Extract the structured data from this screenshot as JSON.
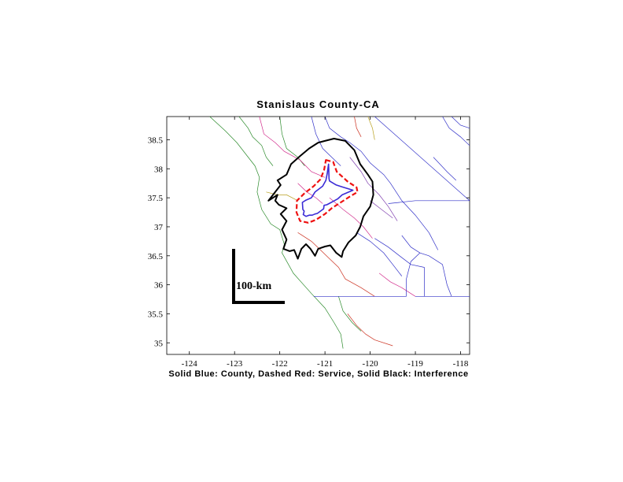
{
  "title": "Stanislaus County-CA",
  "caption": "Solid Blue: County, Dashed Red: Service, Solid Black: Interference",
  "scale_bar_label": "100-km",
  "colors": {
    "county": "#3b2bd6",
    "service": "#ee1111",
    "interference": "#000000",
    "county_lines": [
      "#2a8a2a",
      "#d22c8c",
      "#3030c8",
      "#b8a020",
      "#cc3322",
      "#8040b0"
    ]
  },
  "chart_data": {
    "type": "map",
    "title": "Stanislaus County-CA",
    "xlim": [
      -124.5,
      -117.8
    ],
    "ylim": [
      34.8,
      38.9
    ],
    "x_ticks": [
      {
        "value": -124,
        "label": "-124"
      },
      {
        "value": -123,
        "label": "-123"
      },
      {
        "value": -122,
        "label": "-122"
      },
      {
        "value": -121,
        "label": "-121"
      },
      {
        "value": -120,
        "label": "-120"
      },
      {
        "value": -119,
        "label": "-119"
      },
      {
        "value": -118,
        "label": "-118"
      }
    ],
    "y_ticks": [
      {
        "value": 35,
        "label": "35"
      },
      {
        "value": 35.5,
        "label": "35.5"
      },
      {
        "value": 36,
        "label": "36"
      },
      {
        "value": 36.5,
        "label": "36.5"
      },
      {
        "value": 37,
        "label": "37"
      },
      {
        "value": 37.5,
        "label": "37.5"
      },
      {
        "value": 38,
        "label": "38"
      },
      {
        "value": 38.5,
        "label": "38.5"
      }
    ],
    "legend": "Solid Blue: County, Dashed Red: Service, Solid Black: Interference",
    "county_boundary": [
      [
        -120.92,
        38.08
      ],
      [
        -120.91,
        37.83
      ],
      [
        -120.9,
        37.79
      ],
      [
        -120.75,
        37.72
      ],
      [
        -120.63,
        37.69
      ],
      [
        -120.38,
        37.63
      ],
      [
        -120.62,
        37.55
      ],
      [
        -120.72,
        37.48
      ],
      [
        -120.91,
        37.4
      ],
      [
        -120.96,
        37.38
      ],
      [
        -121.02,
        37.37
      ],
      [
        -121.03,
        37.31
      ],
      [
        -121.17,
        37.23
      ],
      [
        -121.22,
        37.22
      ],
      [
        -121.28,
        37.2
      ],
      [
        -121.35,
        37.2
      ],
      [
        -121.42,
        37.18
      ],
      [
        -121.48,
        37.21
      ],
      [
        -121.46,
        37.27
      ],
      [
        -121.49,
        37.3
      ],
      [
        -121.5,
        37.42
      ],
      [
        -121.42,
        37.46
      ],
      [
        -121.3,
        37.5
      ],
      [
        -121.22,
        37.6
      ],
      [
        -121.05,
        37.7
      ],
      [
        -120.98,
        37.8
      ],
      [
        -120.95,
        37.92
      ],
      [
        -120.92,
        38.08
      ]
    ],
    "service_contour": [
      [
        -120.98,
        38.15
      ],
      [
        -120.82,
        38.12
      ],
      [
        -120.74,
        37.95
      ],
      [
        -120.5,
        37.78
      ],
      [
        -120.3,
        37.68
      ],
      [
        -120.28,
        37.6
      ],
      [
        -120.45,
        37.52
      ],
      [
        -120.65,
        37.42
      ],
      [
        -120.85,
        37.32
      ],
      [
        -121.0,
        37.22
      ],
      [
        -121.2,
        37.12
      ],
      [
        -121.37,
        37.07
      ],
      [
        -121.55,
        37.1
      ],
      [
        -121.63,
        37.25
      ],
      [
        -121.62,
        37.45
      ],
      [
        -121.45,
        37.58
      ],
      [
        -121.25,
        37.7
      ],
      [
        -121.1,
        37.82
      ],
      [
        -121.02,
        37.98
      ],
      [
        -120.98,
        38.15
      ]
    ],
    "interference_contour": [
      [
        -121.0,
        38.48
      ],
      [
        -120.8,
        38.52
      ],
      [
        -120.55,
        38.48
      ],
      [
        -120.35,
        38.32
      ],
      [
        -120.22,
        38.08
      ],
      [
        -120.05,
        37.9
      ],
      [
        -119.95,
        37.78
      ],
      [
        -119.93,
        37.55
      ],
      [
        -120.0,
        37.35
      ],
      [
        -120.15,
        37.18
      ],
      [
        -120.22,
        37.0
      ],
      [
        -120.32,
        36.85
      ],
      [
        -120.48,
        36.73
      ],
      [
        -120.6,
        36.58
      ],
      [
        -120.63,
        36.48
      ],
      [
        -120.75,
        36.55
      ],
      [
        -120.88,
        36.68
      ],
      [
        -121.0,
        36.66
      ],
      [
        -121.15,
        36.62
      ],
      [
        -121.22,
        36.5
      ],
      [
        -121.32,
        36.62
      ],
      [
        -121.42,
        36.7
      ],
      [
        -121.52,
        36.62
      ],
      [
        -121.6,
        36.45
      ],
      [
        -121.68,
        36.6
      ],
      [
        -121.78,
        36.58
      ],
      [
        -121.92,
        36.62
      ],
      [
        -121.85,
        36.78
      ],
      [
        -121.95,
        36.95
      ],
      [
        -121.85,
        37.1
      ],
      [
        -121.98,
        37.22
      ],
      [
        -121.85,
        37.32
      ],
      [
        -122.02,
        37.38
      ],
      [
        -122.1,
        37.45
      ],
      [
        -122.05,
        37.55
      ],
      [
        -122.25,
        37.45
      ],
      [
        -121.98,
        37.72
      ],
      [
        -122.05,
        37.8
      ],
      [
        -121.85,
        37.9
      ],
      [
        -121.75,
        38.08
      ],
      [
        -121.55,
        38.22
      ],
      [
        -121.35,
        38.35
      ],
      [
        -121.15,
        38.45
      ],
      [
        -121.0,
        38.48
      ]
    ],
    "county_lines": [
      {
        "color_index": 0,
        "points": [
          [
            -123.55,
            38.9
          ],
          [
            -123.2,
            38.65
          ],
          [
            -122.95,
            38.45
          ],
          [
            -122.75,
            38.25
          ],
          [
            -122.55,
            38.05
          ],
          [
            -122.45,
            37.85
          ],
          [
            -122.5,
            37.6
          ],
          [
            -122.4,
            37.3
          ],
          [
            -122.2,
            37.05
          ],
          [
            -122.0,
            36.95
          ],
          [
            -121.9,
            36.7
          ],
          [
            -121.95,
            36.55
          ],
          [
            -121.7,
            36.2
          ],
          [
            -121.3,
            35.85
          ],
          [
            -121.0,
            35.6
          ],
          [
            -120.8,
            35.35
          ],
          [
            -120.65,
            35.15
          ],
          [
            -120.6,
            34.9
          ]
        ]
      },
      {
        "color_index": 0,
        "points": [
          [
            -122.9,
            38.9
          ],
          [
            -122.7,
            38.7
          ],
          [
            -122.6,
            38.55
          ],
          [
            -122.4,
            38.4
          ],
          [
            -122.3,
            38.2
          ],
          [
            -122.15,
            38.05
          ]
        ]
      },
      {
        "color_index": 0,
        "points": [
          [
            -122.0,
            38.9
          ],
          [
            -121.95,
            38.6
          ],
          [
            -121.85,
            38.35
          ],
          [
            -121.6,
            38.2
          ],
          [
            -121.45,
            38.05
          ]
        ]
      },
      {
        "color_index": 1,
        "points": [
          [
            -122.45,
            38.9
          ],
          [
            -122.35,
            38.6
          ],
          [
            -122.1,
            38.45
          ],
          [
            -121.9,
            38.3
          ],
          [
            -121.55,
            38.15
          ],
          [
            -121.3,
            37.95
          ],
          [
            -121.0,
            37.85
          ]
        ]
      },
      {
        "color_index": 1,
        "points": [
          [
            -121.6,
            37.75
          ],
          [
            -121.4,
            37.6
          ],
          [
            -121.2,
            37.5
          ],
          [
            -121.05,
            37.4
          ]
        ]
      },
      {
        "color_index": 1,
        "points": [
          [
            -120.9,
            37.5
          ],
          [
            -120.6,
            37.3
          ],
          [
            -120.35,
            37.15
          ],
          [
            -120.15,
            37.0
          ],
          [
            -119.95,
            36.8
          ]
        ]
      },
      {
        "color_index": 2,
        "points": [
          [
            -121.0,
            38.9
          ],
          [
            -120.9,
            38.7
          ],
          [
            -120.65,
            38.55
          ],
          [
            -120.45,
            38.45
          ],
          [
            -120.2,
            38.3
          ],
          [
            -120.0,
            38.1
          ],
          [
            -119.7,
            37.9
          ],
          [
            -119.55,
            37.75
          ],
          [
            -119.3,
            37.45
          ],
          [
            -119.0,
            37.2
          ],
          [
            -118.7,
            36.9
          ]
        ]
      },
      {
        "color_index": 2,
        "points": [
          [
            -121.3,
            38.9
          ],
          [
            -121.2,
            38.6
          ],
          [
            -121.05,
            38.35
          ],
          [
            -120.85,
            38.2
          ],
          [
            -120.65,
            38.05
          ]
        ]
      },
      {
        "color_index": 3,
        "points": [
          [
            -120.05,
            38.9
          ],
          [
            -119.95,
            38.7
          ],
          [
            -119.9,
            38.5
          ]
        ]
      },
      {
        "color_index": 3,
        "points": [
          [
            -122.3,
            37.6
          ],
          [
            -122.05,
            37.55
          ],
          [
            -121.85,
            37.55
          ],
          [
            -121.6,
            37.45
          ]
        ]
      },
      {
        "color_index": 4,
        "points": [
          [
            -120.35,
            38.9
          ],
          [
            -120.3,
            38.7
          ],
          [
            -120.2,
            38.55
          ]
        ]
      },
      {
        "color_index": 4,
        "points": [
          [
            -121.6,
            36.9
          ],
          [
            -121.3,
            36.75
          ],
          [
            -121.1,
            36.6
          ],
          [
            -120.9,
            36.45
          ],
          [
            -120.7,
            36.3
          ],
          [
            -120.55,
            36.1
          ],
          [
            -120.2,
            35.95
          ],
          [
            -119.9,
            35.8
          ]
        ]
      },
      {
        "color_index": 4,
        "points": [
          [
            -120.5,
            35.5
          ],
          [
            -120.3,
            35.3
          ],
          [
            -120.1,
            35.15
          ],
          [
            -119.9,
            35.05
          ],
          [
            -119.5,
            34.95
          ]
        ]
      },
      {
        "color_index": 0,
        "points": [
          [
            -120.7,
            35.8
          ],
          [
            -120.6,
            35.55
          ],
          [
            -120.4,
            35.35
          ],
          [
            -120.2,
            35.2
          ]
        ]
      },
      {
        "color_index": 5,
        "points": [
          [
            -120.45,
            38.2
          ],
          [
            -120.2,
            37.95
          ],
          [
            -120.05,
            37.75
          ],
          [
            -119.8,
            37.55
          ],
          [
            -119.6,
            37.35
          ],
          [
            -119.4,
            37.1
          ]
        ]
      },
      {
        "color_index": 5,
        "points": [
          [
            -120.0,
            37.45
          ],
          [
            -119.75,
            37.3
          ],
          [
            -119.5,
            37.15
          ]
        ]
      },
      {
        "color_index": 2,
        "points": [
          [
            -119.9,
            36.8
          ],
          [
            -119.6,
            36.65
          ],
          [
            -119.35,
            36.5
          ],
          [
            -119.1,
            36.35
          ],
          [
            -118.8,
            36.3
          ]
        ]
      },
      {
        "color_index": 2,
        "points": [
          [
            -120.3,
            36.9
          ],
          [
            -120.0,
            36.75
          ],
          [
            -119.7,
            36.55
          ],
          [
            -119.5,
            36.35
          ],
          [
            -119.3,
            36.15
          ]
        ]
      },
      {
        "color_index": 1,
        "points": [
          [
            -119.8,
            36.2
          ],
          [
            -119.55,
            36.05
          ],
          [
            -119.3,
            35.95
          ],
          [
            -119.0,
            35.8
          ]
        ]
      },
      {
        "color_index": 2,
        "points": [
          [
            -118.4,
            38.9
          ],
          [
            -118.25,
            38.7
          ],
          [
            -118.0,
            38.55
          ],
          [
            -117.8,
            38.4
          ]
        ]
      },
      {
        "color_index": 2,
        "points": [
          [
            -119.9,
            38.9
          ],
          [
            -117.8,
            37.45
          ]
        ]
      },
      {
        "color_index": 2,
        "points": [
          [
            -119.6,
            37.4
          ],
          [
            -119.0,
            37.45
          ],
          [
            -118.4,
            37.45
          ],
          [
            -117.8,
            37.45
          ]
        ]
      },
      {
        "color_index": 2,
        "points": [
          [
            -119.3,
            36.85
          ],
          [
            -119.1,
            36.65
          ],
          [
            -118.9,
            36.55
          ],
          [
            -118.7,
            36.5
          ],
          [
            -118.4,
            36.35
          ],
          [
            -118.3,
            36.0
          ],
          [
            -118.2,
            35.8
          ]
        ]
      },
      {
        "color_index": 2,
        "points": [
          [
            -118.7,
            36.9
          ],
          [
            -118.5,
            36.6
          ]
        ]
      },
      {
        "color_index": 2,
        "points": [
          [
            -119.0,
            35.8
          ],
          [
            -117.8,
            35.8
          ]
        ]
      },
      {
        "color_index": 2,
        "points": [
          [
            -119.2,
            35.8
          ],
          [
            -119.2,
            36.1
          ],
          [
            -119.1,
            36.4
          ],
          [
            -118.9,
            36.55
          ]
        ]
      },
      {
        "color_index": 2,
        "points": [
          [
            -118.8,
            36.3
          ],
          [
            -118.8,
            35.8
          ]
        ]
      },
      {
        "color_index": 2,
        "points": [
          [
            -121.25,
            35.8
          ],
          [
            -119.2,
            35.8
          ]
        ]
      },
      {
        "color_index": 2,
        "points": [
          [
            -118.2,
            38.9
          ],
          [
            -118.0,
            38.75
          ],
          [
            -117.8,
            38.7
          ]
        ]
      },
      {
        "color_index": 2,
        "points": [
          [
            -118.6,
            38.2
          ],
          [
            -118.3,
            37.95
          ],
          [
            -118.1,
            37.8
          ]
        ]
      }
    ],
    "scale_bar": {
      "label": "100-km"
    }
  }
}
